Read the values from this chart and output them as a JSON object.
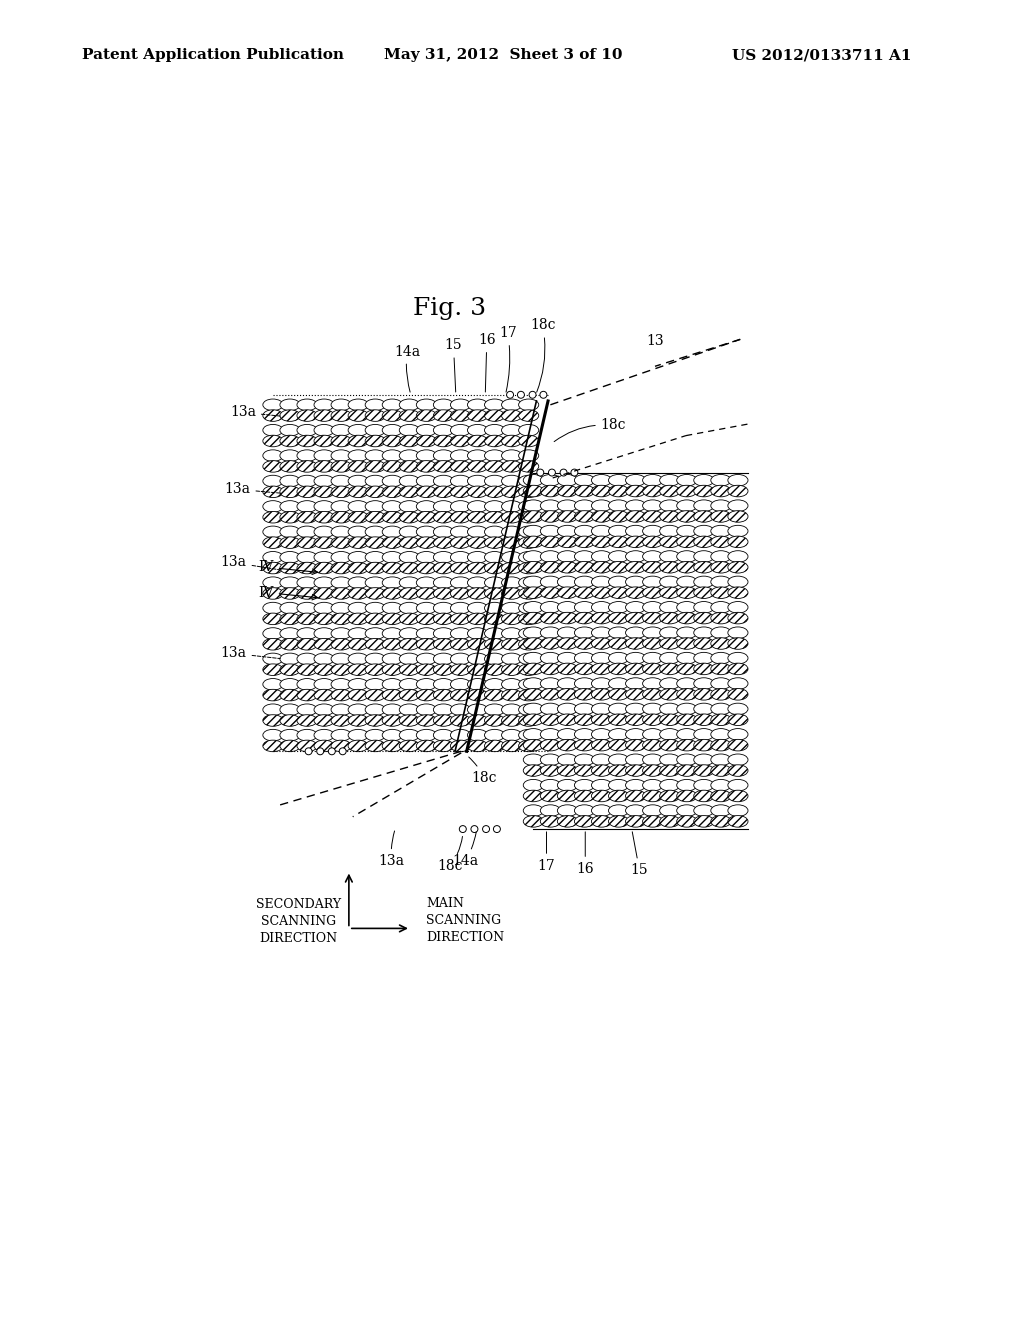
{
  "title": "Fig. 3",
  "header_left": "Patent Application Publication",
  "header_center": "May 31, 2012  Sheet 3 of 10",
  "header_right": "US 2012/0133711 A1",
  "bg_color": "#ffffff",
  "text_color": "#000000",
  "header_fontsize": 11,
  "fig_title_fontsize": 18,
  "label_fontsize": 10,
  "small_label_fontsize": 9,
  "note": "All positions in image pixel coords, y=0 at top"
}
